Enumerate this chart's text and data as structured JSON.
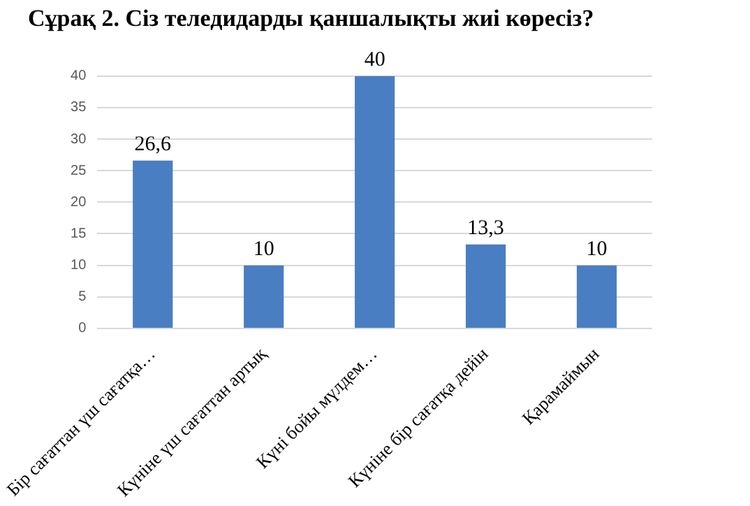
{
  "chart_data": {
    "type": "bar",
    "title": "Сұрақ 2. Сіз теледидарды қаншалықты жиі көресіз?",
    "categories": [
      "Бір сағаттан үш сағатқа…",
      "Күніне үш сағаттан артық",
      "Күні бойы мүлдем…",
      "Күніне бір сағатқа дейін",
      "Қарамаймын"
    ],
    "values": [
      26.6,
      10,
      40,
      13.3,
      10
    ],
    "value_labels": [
      "26,6",
      "10",
      "40",
      "13,3",
      "10"
    ],
    "color": "#4a7ec2",
    "ylim": [
      0,
      40
    ],
    "yticks": [
      0,
      5,
      10,
      15,
      20,
      25,
      30,
      35,
      40
    ],
    "grid": "y",
    "legend": false
  }
}
